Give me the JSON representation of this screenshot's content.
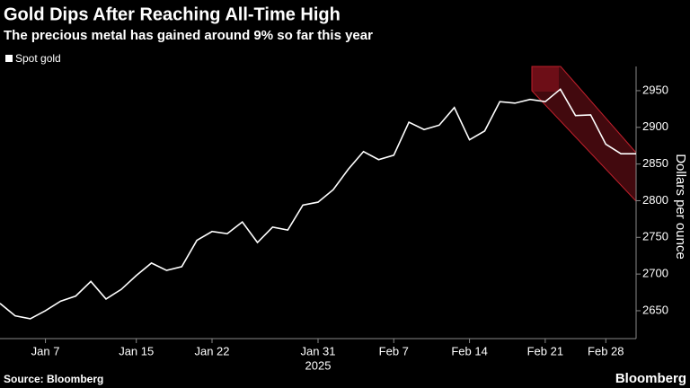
{
  "chart_data": {
    "type": "line",
    "title": "Gold Dips After Reaching All-Time High",
    "subtitle": "The precious metal has gained around 9% so far this year",
    "y_label": "Dollars per ounce",
    "year_label": "2025",
    "source": "Source: Bloomberg",
    "logo": "Bloomberg",
    "categories": [
      null,
      null,
      null,
      "Jan 7",
      null,
      null,
      null,
      null,
      null,
      "Jan 15",
      null,
      null,
      null,
      null,
      "Jan 22",
      null,
      null,
      null,
      null,
      null,
      null,
      "Jan 31",
      null,
      null,
      null,
      null,
      "Feb 7",
      null,
      null,
      null,
      null,
      "Feb 14",
      null,
      null,
      null,
      null,
      "Feb 21",
      null,
      null,
      null,
      "Feb 28",
      null,
      null
    ],
    "series": [
      {
        "name": "Spot gold",
        "color": "#ffffff",
        "values": [
          2660,
          2643,
          2639,
          2650,
          2663,
          2670,
          2690,
          2666,
          2679,
          2698,
          2715,
          2705,
          2710,
          2746,
          2758,
          2755,
          2771,
          2743,
          2764,
          2760,
          2794,
          2798,
          2815,
          2843,
          2867,
          2856,
          2862,
          2907,
          2897,
          2903,
          2927,
          2883,
          2895,
          2935,
          2933,
          2938,
          2935,
          2952,
          2916,
          2917,
          2877,
          2864,
          2864
        ]
      }
    ],
    "ylim": [
      2612,
      2983
    ],
    "yticks": [
      2650,
      2700,
      2750,
      2800,
      2850,
      2900,
      2950
    ]
  }
}
